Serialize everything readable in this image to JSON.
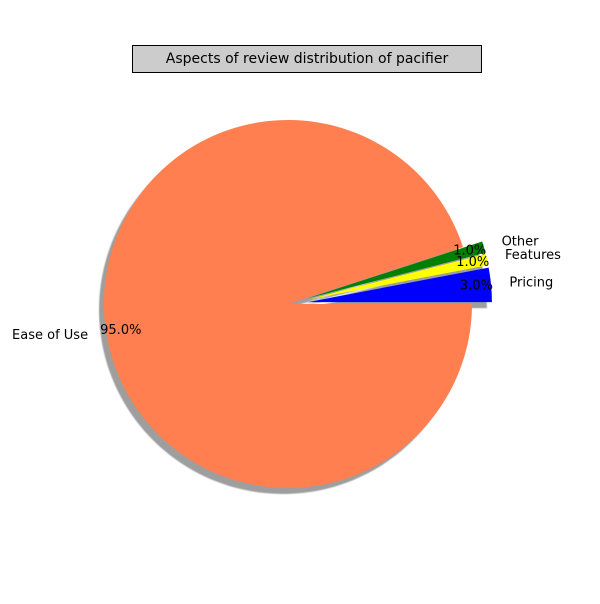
{
  "chart_data": {
    "type": "pie",
    "title": "Aspects of review distribution of pacifier",
    "start_angle_deg": 0,
    "shadow": true,
    "slices": [
      {
        "label": "Pricing",
        "value": 3.0,
        "pct_label": "3.0%",
        "color": "#0000ff",
        "exploded": true
      },
      {
        "label": "Features",
        "value": 1.0,
        "pct_label": "1.0%",
        "color": "#ffff00",
        "exploded": true
      },
      {
        "label": "Other",
        "value": 1.0,
        "pct_label": "1.0%",
        "color": "#008000",
        "exploded": true
      },
      {
        "label": "Ease of Use",
        "value": 95.0,
        "pct_label": "95.0%",
        "color": "#ff7f50",
        "exploded": false
      }
    ]
  }
}
